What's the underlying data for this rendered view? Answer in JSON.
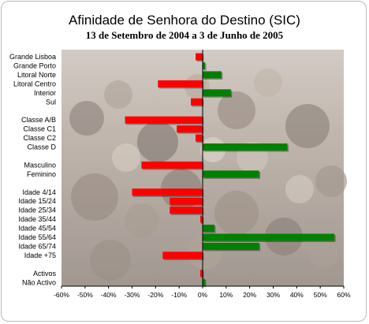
{
  "chart_data": {
    "type": "bar",
    "orientation": "horizontal",
    "title": "Afinidade de Senhora do Destino  (SIC)",
    "subtitle": "13 de Setembro de 2004 a 3 de Junho de 2005",
    "categories": [
      "Grande Lisboa",
      "Grande Porto",
      "Litoral Norte",
      "Litoral Centro",
      "Interior",
      "Sul",
      "",
      "Classe A/B",
      "Classe C1",
      "Classe C2",
      "Classe D",
      "",
      "Masculino",
      "Feminino",
      "",
      "Idade 4/14",
      "Idade 15/24",
      "Idade 25/34",
      "Idade 35/44",
      "Idade 45/54",
      "Idade 55/64",
      "Idade 65/74",
      "Idade +75",
      "",
      "Activos",
      "Não Activo"
    ],
    "values": [
      -3,
      1,
      8,
      -19,
      12,
      -5,
      null,
      -33,
      -11,
      -3,
      36,
      null,
      -26,
      24,
      null,
      -30,
      -14,
      -14,
      -1,
      5,
      56,
      24,
      -17,
      null,
      -1,
      1
    ],
    "xlim": [
      -60,
      60
    ],
    "xticks": [
      -60,
      -50,
      -40,
      -30,
      -20,
      -10,
      0,
      10,
      20,
      30,
      40,
      50,
      60
    ],
    "tick_format": "percent",
    "negative_color": "#ff0000",
    "positive_color": "#008000",
    "grid": false,
    "legend": "none"
  }
}
